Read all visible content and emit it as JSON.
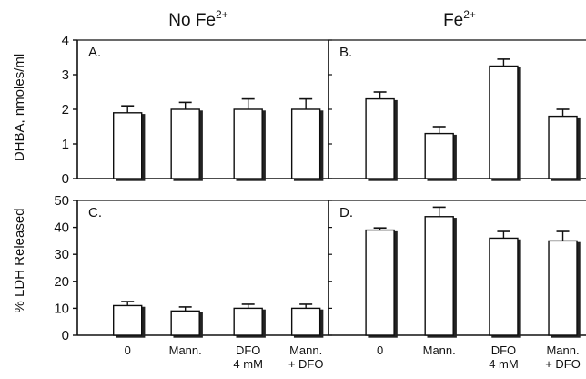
{
  "column_titles": [
    {
      "text": "No Fe",
      "sup": "2+"
    },
    {
      "text": "Fe",
      "sup": "2+"
    }
  ],
  "chart_data": [
    {
      "type": "bar",
      "panel": "A.",
      "categories": [
        [
          "0"
        ],
        [
          "Mann."
        ],
        [
          "DFO",
          "4 mM"
        ],
        [
          "Mann.",
          "+ DFO"
        ]
      ],
      "values": [
        1.9,
        2.0,
        2.0,
        2.0
      ],
      "errors": [
        0.2,
        0.2,
        0.3,
        0.3
      ],
      "ylabel": "DHBA, nmoles/ml",
      "ylim": [
        0,
        4
      ],
      "yticks": [
        0,
        1,
        2,
        3,
        4
      ]
    },
    {
      "type": "bar",
      "panel": "B.",
      "categories": [
        [
          "0"
        ],
        [
          "Mann."
        ],
        [
          "DFO",
          "4 mM"
        ],
        [
          "Mann.",
          "+ DFO"
        ]
      ],
      "values": [
        2.3,
        1.3,
        3.25,
        1.8
      ],
      "errors": [
        0.2,
        0.2,
        0.2,
        0.2
      ],
      "ylabel": "DHBA, nmoles/ml",
      "ylim": [
        0,
        4
      ],
      "yticks": [
        0,
        1,
        2,
        3,
        4
      ]
    },
    {
      "type": "bar",
      "panel": "C.",
      "categories": [
        [
          "0"
        ],
        [
          "Mann."
        ],
        [
          "DFO",
          "4 mM"
        ],
        [
          "Mann.",
          "+ DFO"
        ]
      ],
      "values": [
        11,
        9,
        10,
        10
      ],
      "errors": [
        1.5,
        1.5,
        1.5,
        1.5
      ],
      "ylabel": "% LDH Released",
      "ylim": [
        0,
        50
      ],
      "yticks": [
        0,
        10,
        20,
        30,
        40,
        50
      ]
    },
    {
      "type": "bar",
      "panel": "D.",
      "categories": [
        [
          "0"
        ],
        [
          "Mann."
        ],
        [
          "DFO",
          "4 mM"
        ],
        [
          "Mann.",
          "+ DFO"
        ]
      ],
      "values": [
        39,
        44,
        36,
        35
      ],
      "errors": [
        0.8,
        3.5,
        2.5,
        3.5
      ],
      "ylabel": "% LDH Released",
      "ylim": [
        0,
        50
      ],
      "yticks": [
        0,
        10,
        20,
        30,
        40,
        50
      ]
    }
  ]
}
